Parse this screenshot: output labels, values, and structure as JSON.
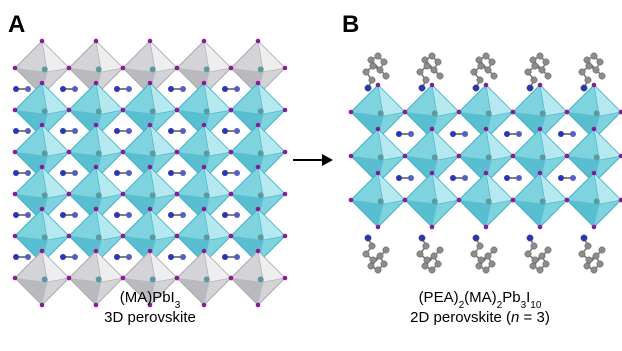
{
  "panels": [
    {
      "label": "A",
      "formula": [
        {
          "text": "(MA)PbI"
        },
        {
          "sub": "3"
        }
      ],
      "description": [
        {
          "text": "3D perovskite"
        }
      ]
    },
    {
      "label": "B",
      "formula": [
        {
          "text": "(PEA)"
        },
        {
          "sub": "2"
        },
        {
          "text": "(MA)"
        },
        {
          "sub": "2"
        },
        {
          "text": "Pb"
        },
        {
          "sub": "3"
        },
        {
          "text": "I"
        },
        {
          "sub": "10"
        }
      ],
      "description": [
        {
          "text": "2D perovskite ("
        },
        {
          "italic": "n"
        },
        {
          "text": " = 3)"
        }
      ]
    }
  ]
}
